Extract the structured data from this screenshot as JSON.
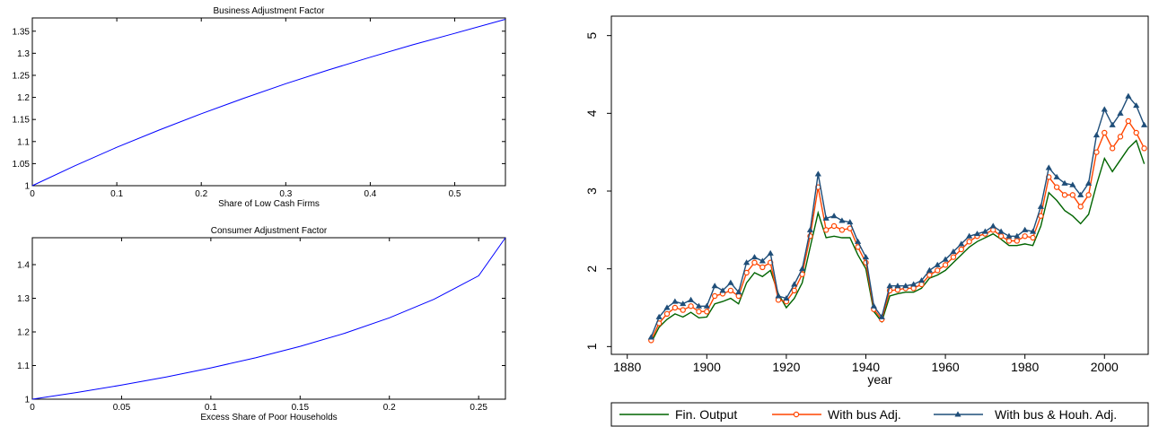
{
  "chart_data": [
    {
      "type": "line",
      "title": "Business Adjustment Factor",
      "xlabel": "Share of Low Cash Firms",
      "ylabel": "",
      "xlim": [
        0,
        0.56
      ],
      "ylim": [
        1,
        1.38
      ],
      "xticks": [
        "0",
        "0.1",
        "0.2",
        "0.3",
        "0.4",
        "0.5"
      ],
      "yticks": [
        "1",
        "1.05",
        "1.1",
        "1.15",
        "1.2",
        "1.25",
        "1.3",
        "1.35"
      ],
      "color": "#0000ff",
      "series": [
        {
          "x": [
            0,
            0.05,
            0.1,
            0.15,
            0.2,
            0.25,
            0.3,
            0.35,
            0.4,
            0.45,
            0.5,
            0.56
          ],
          "values": [
            1.0,
            1.045,
            1.087,
            1.126,
            1.163,
            1.198,
            1.231,
            1.262,
            1.291,
            1.319,
            1.345,
            1.377
          ]
        }
      ]
    },
    {
      "type": "line",
      "title": "Consumer Adjustment Factor",
      "xlabel": "Excess Share of Poor Households",
      "ylabel": "",
      "xlim": [
        0,
        0.265
      ],
      "ylim": [
        1,
        1.48
      ],
      "xticks": [
        "0",
        "0.05",
        "0.1",
        "0.15",
        "0.2",
        "0.25"
      ],
      "yticks": [
        "1",
        "1.1",
        "1.2",
        "1.3",
        "1.4"
      ],
      "color": "#0000ff",
      "series": [
        {
          "x": [
            0,
            0.025,
            0.05,
            0.075,
            0.1,
            0.125,
            0.15,
            0.175,
            0.2,
            0.225,
            0.25,
            0.265
          ],
          "values": [
            1.0,
            1.02,
            1.042,
            1.066,
            1.093,
            1.123,
            1.157,
            1.196,
            1.242,
            1.297,
            1.367,
            1.48
          ]
        }
      ]
    },
    {
      "type": "line",
      "title": "",
      "xlabel": "year",
      "ylabel": "",
      "xlim": [
        1876,
        2011
      ],
      "ylim": [
        0.9,
        5.25
      ],
      "xticks": [
        "1880",
        "1900",
        "1920",
        "1940",
        "1960",
        "1980",
        "2000"
      ],
      "yticks": [
        "1",
        "2",
        "3",
        "4",
        "5"
      ],
      "legend": "bottom",
      "series": [
        {
          "name": "Fin. Output",
          "color": "#006400",
          "x": [
            1886,
            1888,
            1890,
            1892,
            1894,
            1896,
            1898,
            1900,
            1902,
            1904,
            1906,
            1908,
            1910,
            1912,
            1914,
            1916,
            1918,
            1920,
            1922,
            1924,
            1926,
            1928,
            1930,
            1932,
            1934,
            1936,
            1938,
            1940,
            1942,
            1944,
            1946,
            1948,
            1950,
            1952,
            1954,
            1956,
            1958,
            1960,
            1962,
            1964,
            1966,
            1968,
            1970,
            1972,
            1974,
            1976,
            1978,
            1980,
            1982,
            1984,
            1986,
            1988,
            1990,
            1992,
            1994,
            1996,
            1998,
            2000,
            2002,
            2004,
            2006,
            2008,
            2010
          ],
          "values": [
            1.05,
            1.25,
            1.35,
            1.42,
            1.38,
            1.44,
            1.37,
            1.38,
            1.55,
            1.58,
            1.62,
            1.55,
            1.82,
            1.95,
            1.9,
            1.98,
            1.68,
            1.5,
            1.62,
            1.82,
            2.28,
            2.72,
            2.4,
            2.42,
            2.4,
            2.4,
            2.18,
            2.0,
            1.45,
            1.32,
            1.65,
            1.68,
            1.7,
            1.7,
            1.75,
            1.88,
            1.92,
            1.98,
            2.08,
            2.18,
            2.28,
            2.35,
            2.4,
            2.45,
            2.38,
            2.3,
            2.3,
            2.32,
            2.3,
            2.55,
            2.98,
            2.88,
            2.75,
            2.68,
            2.58,
            2.7,
            3.08,
            3.42,
            3.25,
            3.4,
            3.55,
            3.65,
            3.35
          ]
        },
        {
          "name": "With bus Adj.",
          "color": "#ff4500",
          "x": [
            1886,
            1888,
            1890,
            1892,
            1894,
            1896,
            1898,
            1900,
            1902,
            1904,
            1906,
            1908,
            1910,
            1912,
            1914,
            1916,
            1918,
            1920,
            1922,
            1924,
            1926,
            1928,
            1930,
            1932,
            1934,
            1936,
            1938,
            1940,
            1942,
            1944,
            1946,
            1948,
            1950,
            1952,
            1954,
            1956,
            1958,
            1960,
            1962,
            1964,
            1966,
            1968,
            1970,
            1972,
            1974,
            1976,
            1978,
            1980,
            1982,
            1984,
            1986,
            1988,
            1990,
            1992,
            1994,
            1996,
            1998,
            2000,
            2002,
            2004,
            2006,
            2008,
            2010
          ],
          "values": [
            1.08,
            1.3,
            1.42,
            1.5,
            1.47,
            1.52,
            1.45,
            1.45,
            1.65,
            1.68,
            1.72,
            1.65,
            1.95,
            2.08,
            2.02,
            2.08,
            1.6,
            1.58,
            1.72,
            1.93,
            2.42,
            3.05,
            2.5,
            2.55,
            2.5,
            2.52,
            2.28,
            2.08,
            1.48,
            1.35,
            1.72,
            1.73,
            1.75,
            1.75,
            1.8,
            1.92,
            1.98,
            2.05,
            2.15,
            2.25,
            2.35,
            2.42,
            2.45,
            2.5,
            2.42,
            2.36,
            2.36,
            2.42,
            2.4,
            2.68,
            3.18,
            3.05,
            2.95,
            2.95,
            2.8,
            2.95,
            3.5,
            3.75,
            3.55,
            3.7,
            3.9,
            3.75,
            3.55
          ]
        },
        {
          "name": "With bus & Houh. Adj.",
          "color": "#1f4e79",
          "x": [
            1886,
            1888,
            1890,
            1892,
            1894,
            1896,
            1898,
            1900,
            1902,
            1904,
            1906,
            1908,
            1910,
            1912,
            1914,
            1916,
            1918,
            1920,
            1922,
            1924,
            1926,
            1928,
            1930,
            1932,
            1934,
            1936,
            1938,
            1940,
            1942,
            1944,
            1946,
            1948,
            1950,
            1952,
            1954,
            1956,
            1958,
            1960,
            1962,
            1964,
            1966,
            1968,
            1970,
            1972,
            1974,
            1976,
            1978,
            1980,
            1982,
            1984,
            1986,
            1988,
            1990,
            1992,
            1994,
            1996,
            1998,
            2000,
            2002,
            2004,
            2006,
            2008,
            2010
          ],
          "values": [
            1.12,
            1.38,
            1.5,
            1.58,
            1.55,
            1.6,
            1.52,
            1.52,
            1.78,
            1.72,
            1.82,
            1.7,
            2.08,
            2.15,
            2.1,
            2.2,
            1.65,
            1.62,
            1.8,
            2.0,
            2.5,
            3.22,
            2.65,
            2.68,
            2.62,
            2.6,
            2.35,
            2.15,
            1.52,
            1.38,
            1.78,
            1.78,
            1.78,
            1.8,
            1.85,
            1.98,
            2.05,
            2.12,
            2.22,
            2.32,
            2.42,
            2.45,
            2.48,
            2.55,
            2.48,
            2.42,
            2.42,
            2.5,
            2.48,
            2.8,
            3.3,
            3.18,
            3.1,
            3.08,
            2.95,
            3.1,
            3.72,
            4.05,
            3.85,
            4.0,
            4.22,
            4.1,
            3.85
          ]
        }
      ]
    }
  ]
}
